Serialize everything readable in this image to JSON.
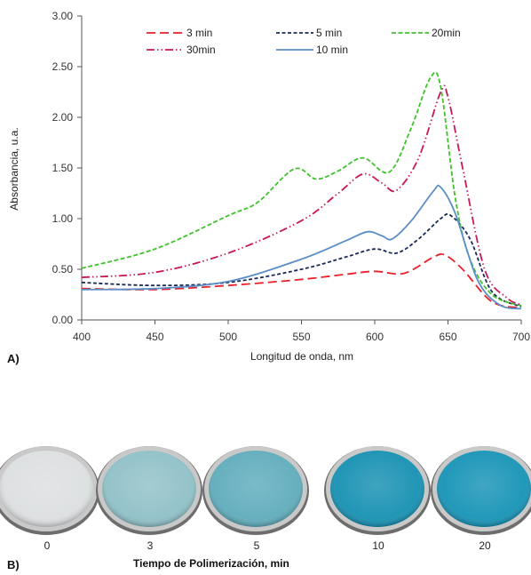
{
  "chart_data": {
    "type": "line",
    "xlabel": "Longitud de onda, nm",
    "ylabel": "Absorbancia, u.a.",
    "xlim": [
      400,
      700
    ],
    "ylim": [
      0,
      3
    ],
    "x_ticks": [
      "400",
      "450",
      "500",
      "550",
      "600",
      "650",
      "700"
    ],
    "y_ticks": [
      "0.00",
      "0.50",
      "1.00",
      "1.50",
      "2.00",
      "2.50",
      "3.00"
    ],
    "grid": false,
    "legend_position": "top",
    "series": [
      {
        "name": "3 min",
        "color": "#e8202a",
        "dash": "long-dash",
        "x": [
          400,
          450,
          500,
          550,
          580,
          600,
          620,
          640,
          648,
          660,
          680,
          700
        ],
        "y": [
          0.31,
          0.3,
          0.34,
          0.4,
          0.45,
          0.48,
          0.46,
          0.62,
          0.64,
          0.5,
          0.18,
          0.12
        ]
      },
      {
        "name": "5 min",
        "color": "#1a2a57",
        "dash": "short-dash",
        "x": [
          400,
          450,
          500,
          550,
          580,
          600,
          615,
          630,
          645,
          652,
          665,
          680,
          700
        ],
        "y": [
          0.37,
          0.34,
          0.37,
          0.5,
          0.62,
          0.7,
          0.66,
          0.8,
          1.0,
          1.03,
          0.8,
          0.28,
          0.13
        ]
      },
      {
        "name": "20min",
        "color": "#3ec22b",
        "dash": "dash",
        "x": [
          400,
          450,
          500,
          520,
          545,
          560,
          575,
          592,
          610,
          625,
          638,
          645,
          655,
          665,
          680,
          700
        ],
        "y": [
          0.51,
          0.7,
          1.03,
          1.16,
          1.49,
          1.39,
          1.47,
          1.6,
          1.46,
          1.9,
          2.39,
          2.3,
          1.2,
          0.6,
          0.25,
          0.14
        ]
      },
      {
        "name": "30min",
        "color": "#c8185a",
        "dash": "dash-dot-dot",
        "x": [
          400,
          450,
          500,
          550,
          575,
          592,
          605,
          615,
          630,
          645,
          650,
          660,
          675,
          690,
          700
        ],
        "y": [
          0.42,
          0.47,
          0.66,
          0.98,
          1.25,
          1.44,
          1.35,
          1.28,
          1.6,
          2.25,
          2.2,
          1.5,
          0.5,
          0.22,
          0.15
        ]
      },
      {
        "name": "10 min",
        "color": "#5b8ec6",
        "dash": "solid",
        "x": [
          400,
          450,
          500,
          550,
          580,
          595,
          605,
          612,
          625,
          640,
          645,
          655,
          670,
          685,
          700
        ],
        "y": [
          0.3,
          0.31,
          0.38,
          0.6,
          0.78,
          0.87,
          0.83,
          0.8,
          0.98,
          1.27,
          1.31,
          1.05,
          0.4,
          0.15,
          0.11
        ]
      }
    ]
  },
  "panel_a_label": "A)",
  "panel_b": {
    "label": "B)",
    "caption": "Tiempo de Polimerización, min",
    "dishes": [
      {
        "label": "0",
        "color": "#dcdfe0"
      },
      {
        "label": "3",
        "color": "#8fc0c7"
      },
      {
        "label": "5",
        "color": "#5facbb"
      },
      {
        "label": "10",
        "color": "#1690b2"
      },
      {
        "label": "20",
        "color": "#1693b6"
      }
    ]
  }
}
